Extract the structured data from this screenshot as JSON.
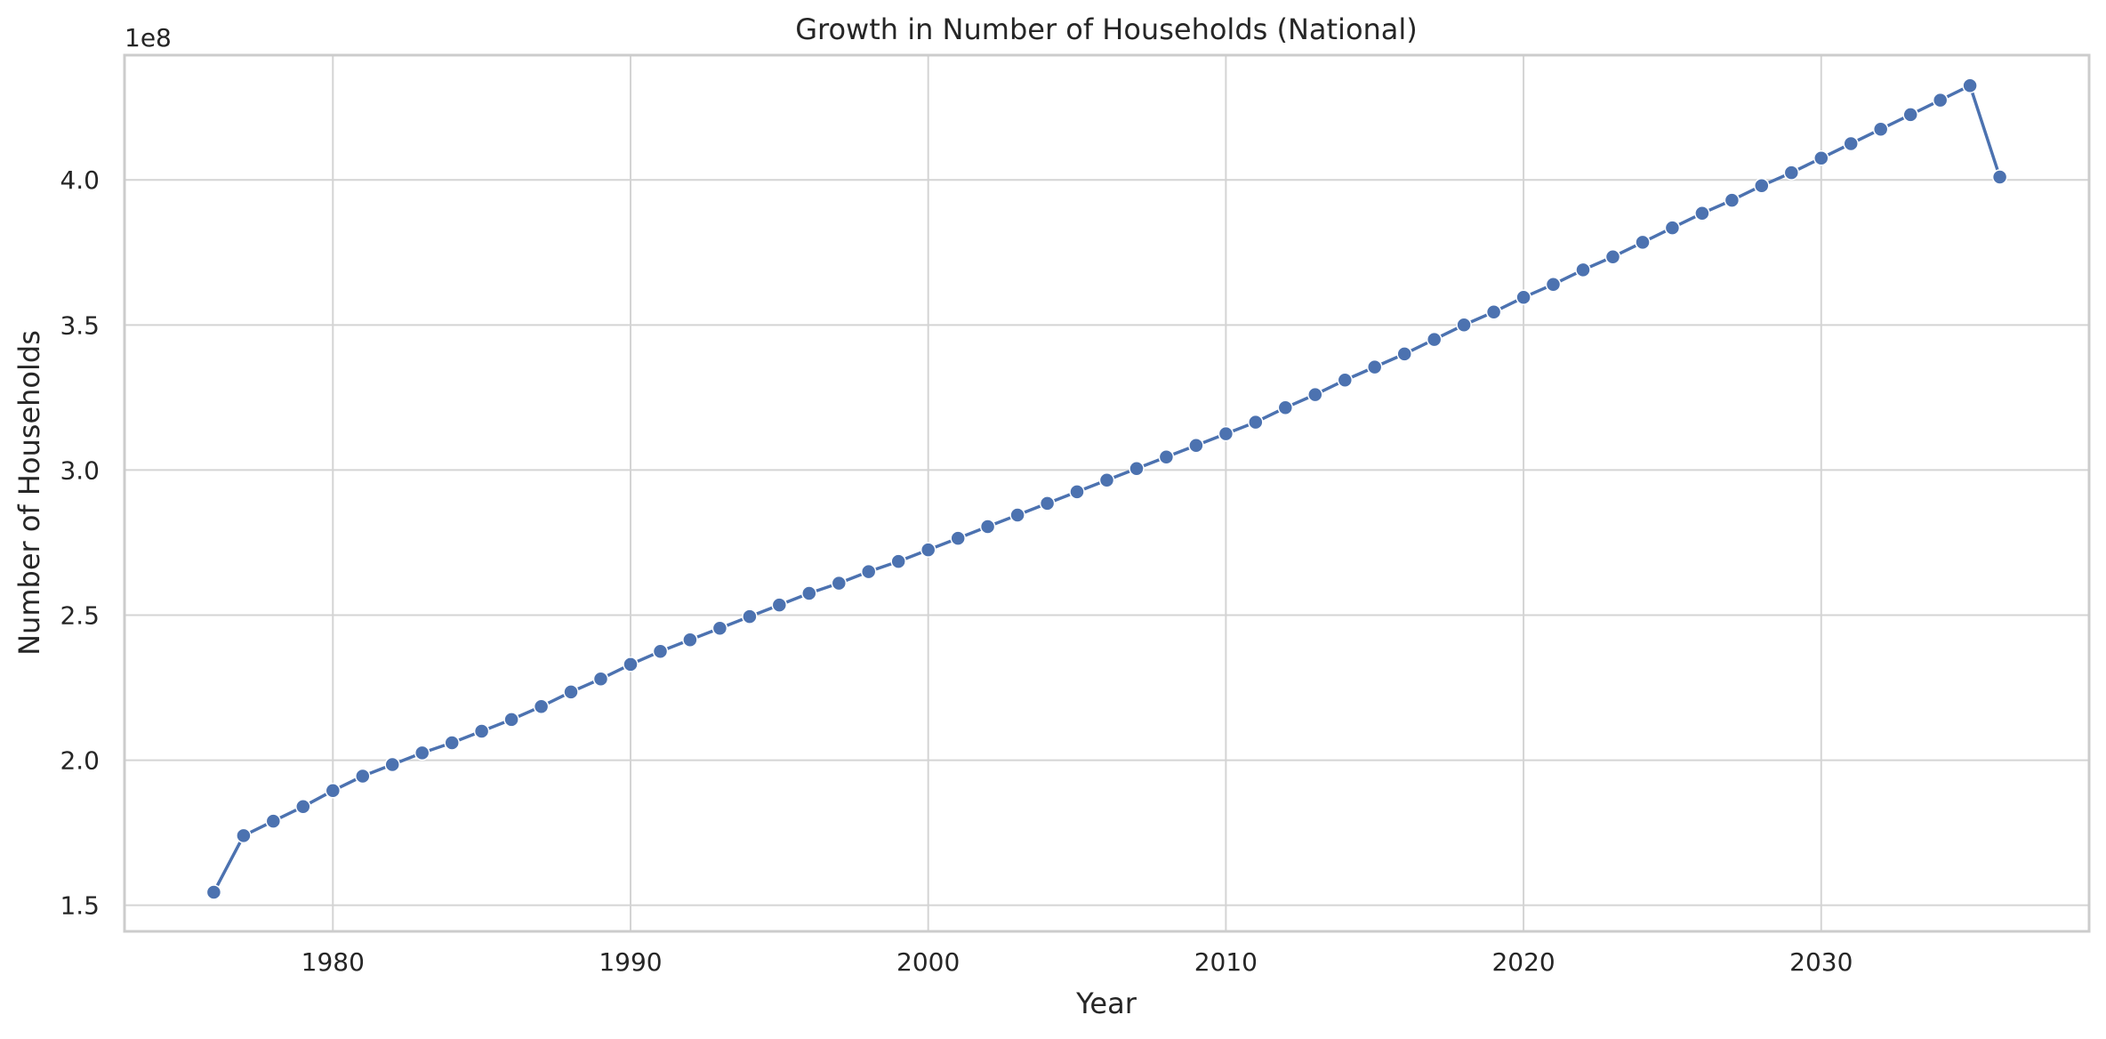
{
  "chart_data": {
    "type": "line",
    "title": "Growth in Number of Households (National)",
    "xlabel": "Year",
    "ylabel": "Number of Households",
    "y_offset_label": "1e8",
    "xlim": [
      1973,
      2039
    ],
    "ylim": [
      1.41,
      4.43
    ],
    "x_ticks": [
      1980,
      1990,
      2000,
      2010,
      2020,
      2030
    ],
    "x_tick_labels": [
      "1980",
      "1990",
      "2000",
      "2010",
      "2020",
      "2030"
    ],
    "y_ticks": [
      1.5,
      2.0,
      2.5,
      3.0,
      3.5,
      4.0
    ],
    "y_tick_labels": [
      "1.5",
      "2.0",
      "2.5",
      "3.0",
      "3.5",
      "4.0"
    ],
    "grid": true,
    "line_color": "#4c72b0",
    "series": [
      {
        "x": [
          1976,
          1977,
          1978,
          1979,
          1980,
          1981,
          1982,
          1983,
          1984,
          1985,
          1986,
          1987,
          1988,
          1989,
          1990,
          1991,
          1992,
          1993,
          1994,
          1995,
          1996,
          1997,
          1998,
          1999,
          2000,
          2001,
          2002,
          2003,
          2004,
          2005,
          2006,
          2007,
          2008,
          2009,
          2010,
          2011,
          2012,
          2013,
          2014,
          2015,
          2016,
          2017,
          2018,
          2019,
          2020,
          2021,
          2022,
          2023,
          2024,
          2025,
          2026,
          2027,
          2028,
          2029,
          2030,
          2031,
          2032,
          2033,
          2034,
          2035,
          2036
        ],
        "y": [
          1.545,
          1.74,
          1.79,
          1.84,
          1.895,
          1.945,
          1.985,
          2.025,
          2.06,
          2.1,
          2.14,
          2.185,
          2.235,
          2.28,
          2.33,
          2.375,
          2.415,
          2.455,
          2.495,
          2.535,
          2.575,
          2.61,
          2.65,
          2.685,
          2.725,
          2.765,
          2.805,
          2.845,
          2.885,
          2.925,
          2.965,
          3.005,
          3.045,
          3.085,
          3.125,
          3.165,
          3.215,
          3.26,
          3.31,
          3.355,
          3.4,
          3.45,
          3.5,
          3.545,
          3.595,
          3.64,
          3.69,
          3.735,
          3.785,
          3.835,
          3.885,
          3.93,
          3.98,
          4.025,
          4.075,
          4.125,
          4.175,
          4.225,
          4.275,
          4.325,
          4.01
        ]
      }
    ]
  }
}
